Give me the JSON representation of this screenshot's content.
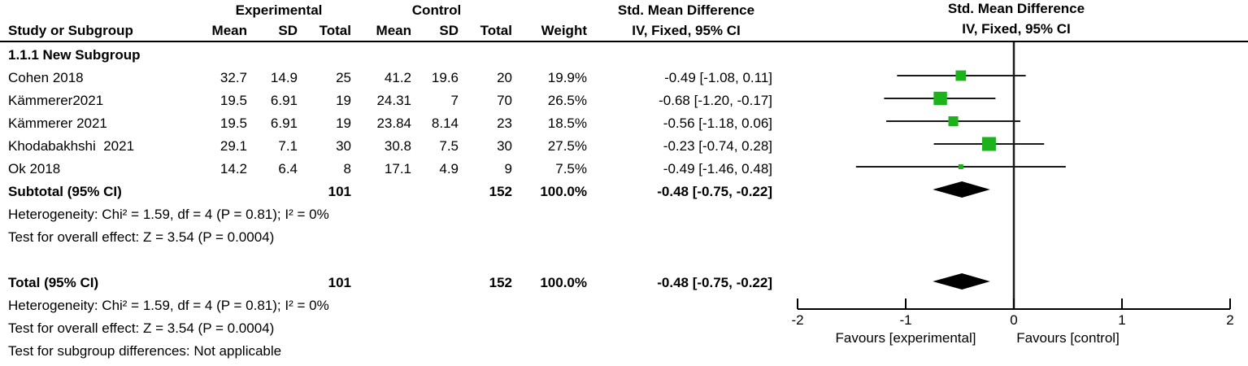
{
  "table": {
    "header": {
      "group_experimental": "Experimental",
      "group_control": "Control",
      "smd_title": "Std. Mean Difference",
      "smd_sub": "IV, Fixed, 95% CI",
      "col_study": "Study or Subgroup",
      "col_mean": "Mean",
      "col_sd": "SD",
      "col_total": "Total",
      "col_weight": "Weight"
    },
    "plot_header": {
      "title": "Std. Mean Difference",
      "sub": "IV, Fixed, 95% CI"
    },
    "subgroup_label": "1.1.1 New Subgroup",
    "studies": [
      {
        "name": "Cohen 2018",
        "mean1": "32.7",
        "sd1": "14.9",
        "total1": "25",
        "mean2": "41.2",
        "sd2": "19.6",
        "total2": "20",
        "weight": "19.9%",
        "ci": "-0.49 [-1.08, 0.11]"
      },
      {
        "name": "Kämmerer2021",
        "mean1": "19.5",
        "sd1": "6.91",
        "total1": "19",
        "mean2": "24.31",
        "sd2": "7",
        "total2": "70",
        "weight": "26.5%",
        "ci": "-0.68 [-1.20, -0.17]"
      },
      {
        "name": "Kämmerer 2021",
        "mean1": "19.5",
        "sd1": "6.91",
        "total1": "19",
        "mean2": "23.84",
        "sd2": "8.14",
        "total2": "23",
        "weight": "18.5%",
        "ci": "-0.56 [-1.18, 0.06]"
      },
      {
        "name": "Khodabakhshi  2021",
        "mean1": "29.1",
        "sd1": "7.1",
        "total1": "30",
        "mean2": "30.8",
        "sd2": "7.5",
        "total2": "30",
        "weight": "27.5%",
        "ci": "-0.23 [-0.74, 0.28]"
      },
      {
        "name": "Ok 2018",
        "mean1": "14.2",
        "sd1": "6.4",
        "total1": "8",
        "mean2": "17.1",
        "sd2": "4.9",
        "total2": "9",
        "weight": "7.5%",
        "ci": "-0.49 [-1.46, 0.48]"
      }
    ],
    "subtotal": {
      "name": "Subtotal (95% CI)",
      "total1": "101",
      "total2": "152",
      "weight": "100.0%",
      "ci": "-0.48 [-0.75, -0.22]"
    },
    "subtotal_heterogeneity": "Heterogeneity: Chi² = 1.59, df = 4 (P = 0.81); I² = 0%",
    "subtotal_overall_effect": "Test for overall effect: Z = 3.54 (P = 0.0004)",
    "total": {
      "name": "Total (95% CI)",
      "total1": "101",
      "total2": "152",
      "weight": "100.0%",
      "ci": "-0.48 [-0.75, -0.22]"
    },
    "total_heterogeneity": "Heterogeneity: Chi² = 1.59, df = 4 (P = 0.81); I² = 0%",
    "total_overall_effect": "Test for overall effect: Z = 3.54 (P = 0.0004)",
    "subgroup_differences": "Test for subgroup differences: Not applicable"
  },
  "chart_data": {
    "type": "forest",
    "title": "Std. Mean Difference",
    "subtitle": "IV, Fixed, 95% CI",
    "axis": {
      "min": -2,
      "max": 2,
      "ticks": [
        -2,
        -1,
        0,
        1,
        2
      ],
      "zero_line": 0
    },
    "tick_labels": [
      "-2",
      "-1",
      "0",
      "1",
      "2"
    ],
    "favours_left": "Favours [experimental]",
    "favours_right": "Favours [control]",
    "studies": [
      {
        "name": "Cohen 2018",
        "smd": -0.49,
        "ci_low": -1.08,
        "ci_high": 0.11,
        "weight": 19.9
      },
      {
        "name": "Kämmerer2021",
        "smd": -0.68,
        "ci_low": -1.2,
        "ci_high": -0.17,
        "weight": 26.5
      },
      {
        "name": "Kämmerer 2021",
        "smd": -0.56,
        "ci_low": -1.18,
        "ci_high": 0.06,
        "weight": 18.5
      },
      {
        "name": "Khodabakhshi 2021",
        "smd": -0.23,
        "ci_low": -0.74,
        "ci_high": 0.28,
        "weight": 27.5
      },
      {
        "name": "Ok 2018",
        "smd": -0.49,
        "ci_low": -1.46,
        "ci_high": 0.48,
        "weight": 7.5
      }
    ],
    "subtotal": {
      "smd": -0.48,
      "ci_low": -0.75,
      "ci_high": -0.22
    },
    "total": {
      "smd": -0.48,
      "ci_low": -0.75,
      "ci_high": -0.22
    },
    "colors": {
      "marker": "#1cb21c",
      "diamond": "#000000",
      "line": "#1a1a1a"
    }
  }
}
